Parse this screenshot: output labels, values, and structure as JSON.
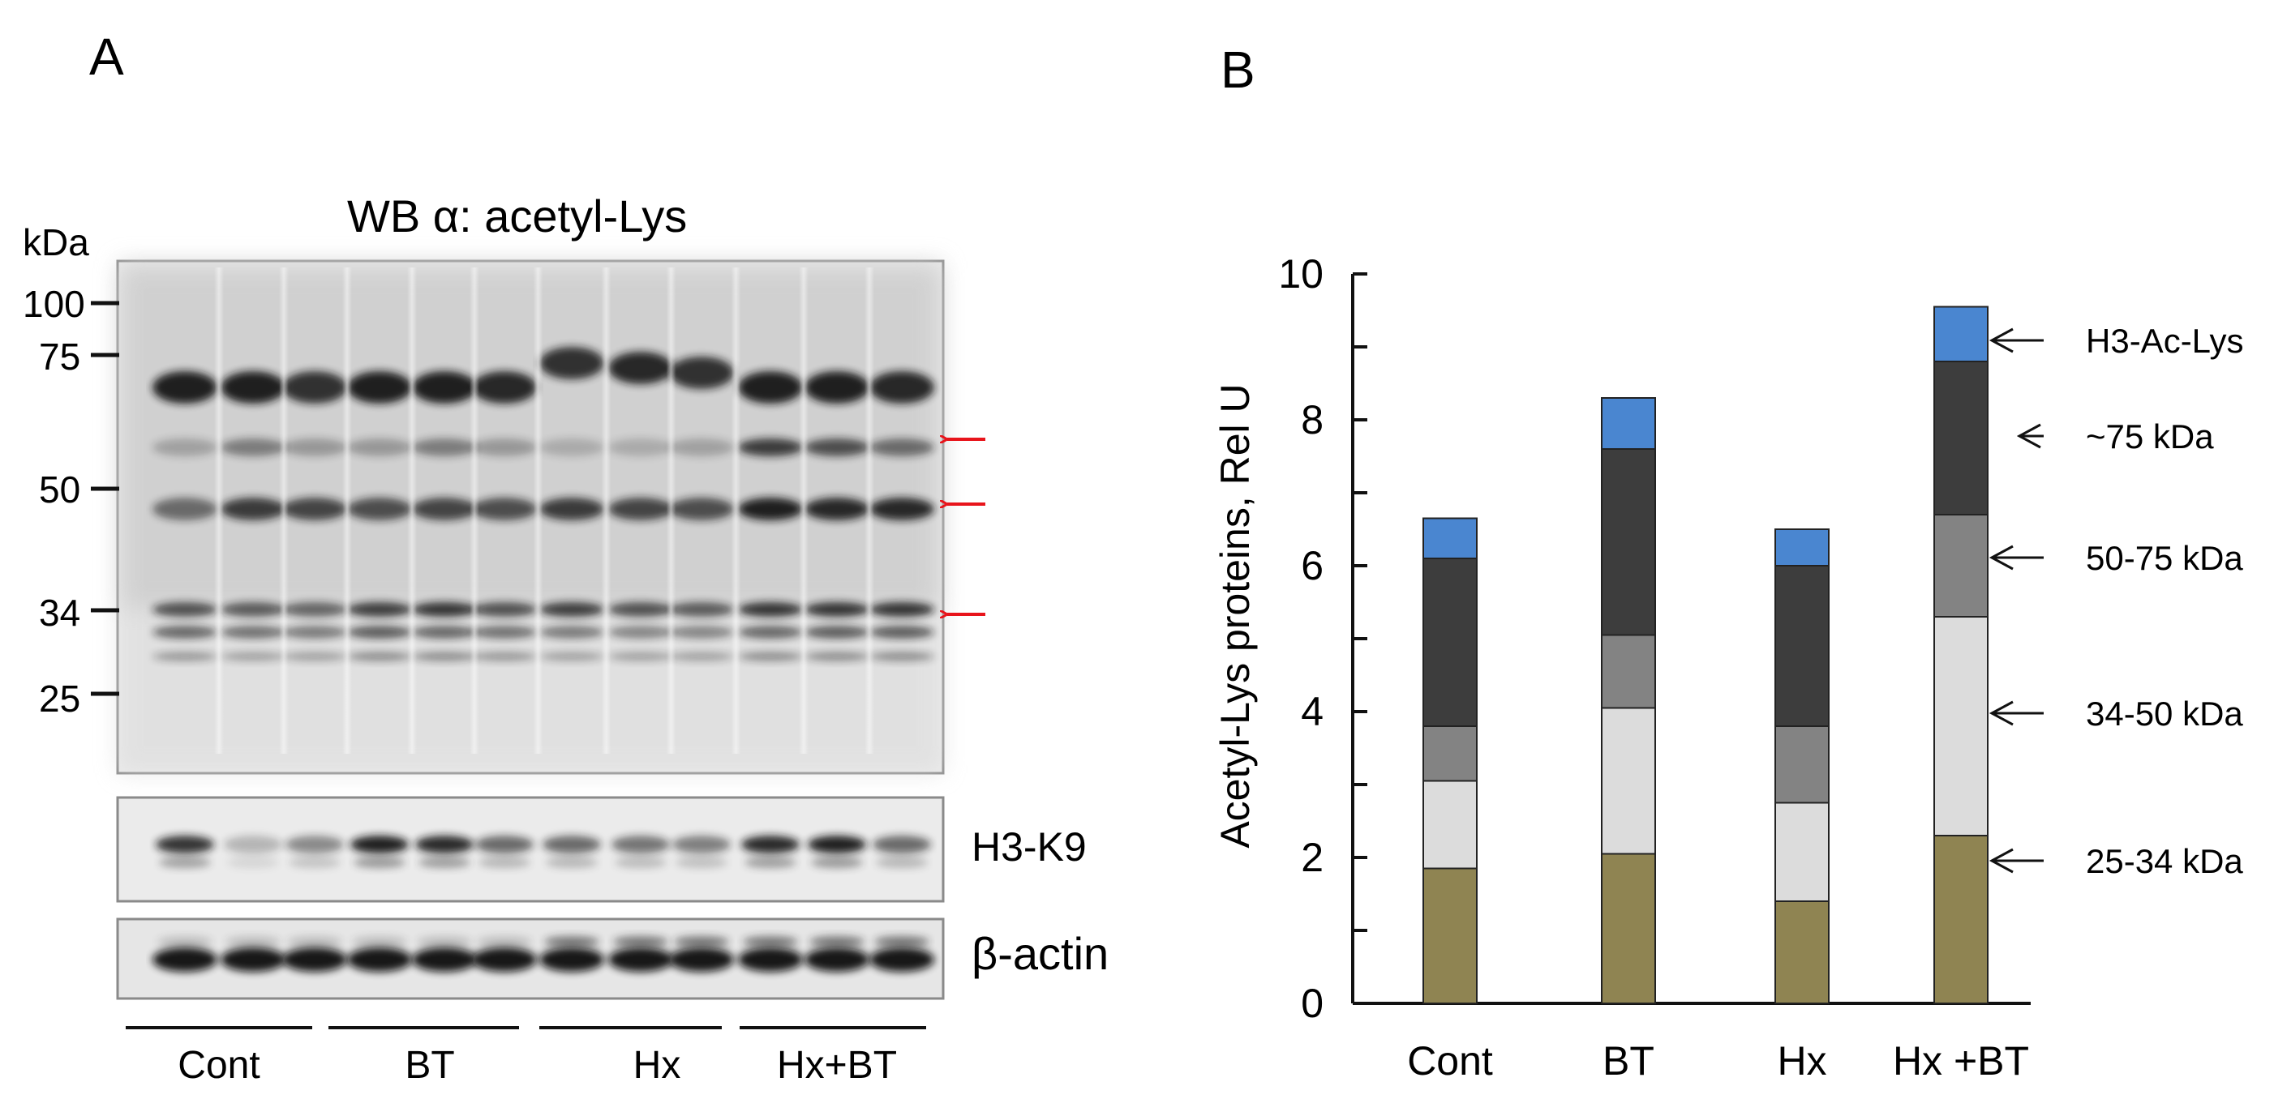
{
  "panel_a": {
    "letter": "A",
    "title": "WB α: acetyl-Lys",
    "kda_label": "kDa",
    "markers": [
      "100",
      "75",
      "50",
      "34",
      "25"
    ],
    "strip_labels": [
      "H3-K9",
      "β-actin"
    ],
    "groups": [
      "Cont",
      "BT",
      "Hx",
      "Hx+BT"
    ],
    "arrow_color": "#e8141b"
  },
  "panel_b": {
    "letter": "B"
  },
  "chart_data": {
    "type": "bar",
    "stacked": true,
    "ylabel": "Acetyl-Lys proteins, Rel U",
    "xlabel": "",
    "ylim": [
      0,
      10
    ],
    "yticks": [
      "0",
      "2",
      "4",
      "6",
      "8",
      "10"
    ],
    "categories": [
      "Cont",
      "BT",
      "Hx",
      "Hx +BT"
    ],
    "series": [
      {
        "name": "25-34 kDa",
        "color": "#8f8452",
        "values": [
          1.85,
          2.05,
          1.4,
          2.3
        ]
      },
      {
        "name": "34-50 kDa",
        "color": "#dcdcdc",
        "values": [
          1.2,
          2.0,
          1.35,
          3.0
        ]
      },
      {
        "name": "50-75 kDa",
        "color": "#838383",
        "values": [
          0.75,
          1.0,
          1.05,
          1.4
        ]
      },
      {
        "name": "~75 kDa",
        "color": "#3d3d3d",
        "values": [
          2.3,
          2.55,
          2.2,
          2.1
        ]
      },
      {
        "name": "H3-Ac-Lys",
        "color": "#4a86d0",
        "values": [
          0.55,
          0.7,
          0.5,
          0.75
        ]
      }
    ],
    "legend_placement": "right, arrow-labelled"
  }
}
